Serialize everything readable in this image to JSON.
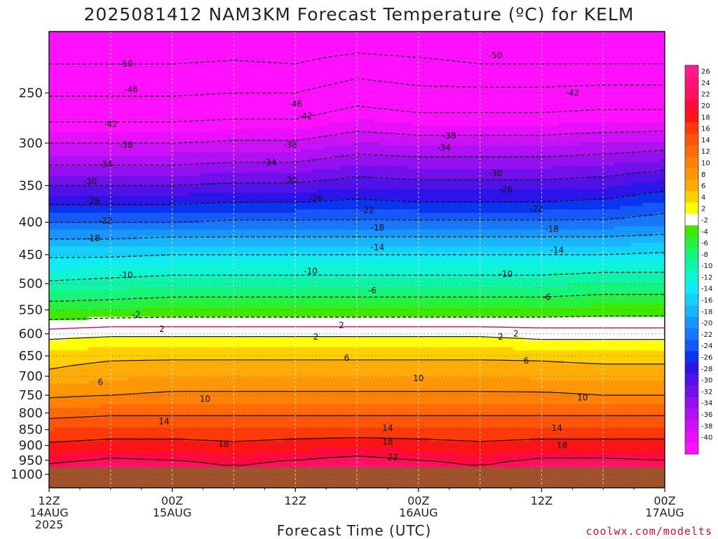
{
  "chart_data": {
    "type": "heatmap",
    "title": "2025081412 NAM3KM Forecast Temperature (ºC) for KELM",
    "xlabel": "Forecast Time (UTC)",
    "ylabel": "",
    "credit": "coolwx.com/modelts",
    "x_hours_from_start": [
      0,
      6,
      12,
      18,
      24,
      30,
      36,
      42,
      48,
      54,
      60
    ],
    "x_ticks": [
      {
        "hour": 0,
        "line1": "12Z",
        "line2": "14AUG",
        "line3": "2025"
      },
      {
        "hour": 12,
        "line1": "00Z",
        "line2": "15AUG",
        "line3": ""
      },
      {
        "hour": 24,
        "line1": "12Z",
        "line2": "",
        "line3": ""
      },
      {
        "hour": 36,
        "line1": "00Z",
        "line2": "16AUG",
        "line3": ""
      },
      {
        "hour": 48,
        "line1": "12Z",
        "line2": "",
        "line3": ""
      },
      {
        "hour": 60,
        "line1": "00Z",
        "line2": "17AUG",
        "line3": ""
      }
    ],
    "y_ticks_hPa": [
      250,
      300,
      350,
      400,
      450,
      500,
      550,
      600,
      650,
      700,
      750,
      800,
      850,
      900,
      950,
      1000
    ],
    "ylim_hPa": [
      200,
      1050
    ],
    "surface_pressure_hPa": 975,
    "contour_interval": 4,
    "temperature_levels": [
      {
        "p": 200,
        "t": [
          -54,
          -54,
          -54,
          -54,
          -54,
          -54,
          -54,
          -54,
          -54,
          -54,
          -54
        ]
      },
      {
        "p": 225,
        "t": [
          -50,
          -50,
          -50,
          -49.5,
          -50,
          -48,
          -49,
          -50,
          -50,
          -50,
          -50
        ]
      },
      {
        "p": 250,
        "t": [
          -46.5,
          -46.5,
          -46.5,
          -46,
          -46,
          -44,
          -45,
          -45,
          -45,
          -44.5,
          -44.5
        ]
      },
      {
        "p": 275,
        "t": [
          -42.5,
          -42.5,
          -42.5,
          -42,
          -42,
          -40,
          -41,
          -41,
          -41,
          -40.5,
          -40.5
        ]
      },
      {
        "p": 300,
        "t": [
          -38,
          -38,
          -38,
          -37.5,
          -37.5,
          -36,
          -36.5,
          -36.5,
          -36.5,
          -36,
          -35.5
        ]
      },
      {
        "p": 325,
        "t": [
          -34,
          -34,
          -34,
          -33.5,
          -33.5,
          -32,
          -32.5,
          -32.5,
          -32.5,
          -32,
          -31
        ]
      },
      {
        "p": 350,
        "t": [
          -30,
          -30,
          -30,
          -29.5,
          -29.5,
          -28.5,
          -29,
          -29,
          -29,
          -28.5,
          -27
        ]
      },
      {
        "p": 375,
        "t": [
          -26,
          -26,
          -26,
          -25.5,
          -25.5,
          -25,
          -25.5,
          -25.5,
          -25.5,
          -25,
          -23.5
        ]
      },
      {
        "p": 400,
        "t": [
          -22,
          -22,
          -22,
          -21.5,
          -21.5,
          -21.5,
          -21.5,
          -21.5,
          -21.5,
          -21.5,
          -20.5
        ]
      },
      {
        "p": 425,
        "t": [
          -18,
          -18,
          -17.5,
          -17.5,
          -17.5,
          -17.5,
          -17.5,
          -17.5,
          -17.5,
          -17.5,
          -17
        ]
      },
      {
        "p": 450,
        "t": [
          -14.5,
          -14.5,
          -14,
          -14,
          -14,
          -14,
          -14,
          -14,
          -14,
          -14,
          -13.5
        ]
      },
      {
        "p": 475,
        "t": [
          -12,
          -11.5,
          -11,
          -11,
          -11,
          -11,
          -11,
          -11,
          -11,
          -10.5,
          -10.5
        ]
      },
      {
        "p": 500,
        "t": [
          -9.5,
          -9,
          -8.5,
          -8.5,
          -8.5,
          -8.5,
          -8.5,
          -8.5,
          -8.5,
          -8,
          -8
        ]
      },
      {
        "p": 525,
        "t": [
          -7,
          -6.5,
          -6,
          -6,
          -6,
          -6,
          -6,
          -6,
          -6,
          -5.5,
          -5.5
        ]
      },
      {
        "p": 550,
        "t": [
          -4,
          -4,
          -3.5,
          -3.5,
          -3.5,
          -3.5,
          -3.5,
          -3.5,
          -3.5,
          -3,
          -3
        ]
      },
      {
        "p": 575,
        "t": [
          -1.5,
          -1,
          -1,
          -1,
          -1,
          -1,
          -1,
          -1,
          -1,
          -1,
          -1
        ]
      },
      {
        "p": 600,
        "t": [
          1,
          1.5,
          1.5,
          1.5,
          1.5,
          1.5,
          1.5,
          1.5,
          1,
          1,
          1
        ]
      },
      {
        "p": 625,
        "t": [
          3,
          3.5,
          3.5,
          3.5,
          3.5,
          3.5,
          3.5,
          3.5,
          3,
          3,
          3
        ]
      },
      {
        "p": 650,
        "t": [
          5,
          5.5,
          5.5,
          5.5,
          5.5,
          5.5,
          5.5,
          5.5,
          5.5,
          5,
          5
        ]
      },
      {
        "p": 700,
        "t": [
          6.5,
          7.5,
          8,
          8,
          8,
          8,
          8,
          8,
          7.5,
          7.5,
          7.5
        ]
      },
      {
        "p": 750,
        "t": [
          9.5,
          10,
          10.5,
          10.5,
          10.5,
          10.5,
          10.5,
          10.5,
          10.5,
          10,
          10
        ]
      },
      {
        "p": 800,
        "t": [
          13,
          13.5,
          13.5,
          13.5,
          13.5,
          13.5,
          13.5,
          13.5,
          13.5,
          13.5,
          13.5
        ]
      },
      {
        "p": 850,
        "t": [
          16,
          16.5,
          16.5,
          16.5,
          16.5,
          16.5,
          16.5,
          16.5,
          16.5,
          16.5,
          16.5
        ]
      },
      {
        "p": 900,
        "t": [
          18.5,
          19,
          19,
          18.5,
          19,
          19.5,
          19,
          18.5,
          19,
          19,
          19
        ]
      },
      {
        "p": 950,
        "t": [
          21,
          22.5,
          22,
          21,
          22,
          23,
          22,
          21,
          22.5,
          22.5,
          22
        ]
      },
      {
        "p": 975,
        "t": [
          23,
          25,
          24,
          22,
          24,
          26,
          24,
          22,
          25,
          25,
          24
        ]
      }
    ],
    "contour_labels": [
      {
        "value": "-50",
        "positions": [
          [
            7.5,
            225
          ],
          [
            43.5,
            218
          ]
        ]
      },
      {
        "value": "-46",
        "positions": [
          [
            8,
            247
          ],
          [
            24,
            260
          ]
        ]
      },
      {
        "value": "-42",
        "positions": [
          [
            6,
            280
          ],
          [
            25,
            272
          ],
          [
            51,
            250
          ]
        ]
      },
      {
        "value": "-38",
        "positions": [
          [
            7.5,
            302
          ],
          [
            23.5,
            302
          ],
          [
            39,
            292
          ]
        ]
      },
      {
        "value": "-34",
        "positions": [
          [
            5.5,
            324
          ],
          [
            21.5,
            322
          ],
          [
            38.5,
            305
          ]
        ]
      },
      {
        "value": "-30",
        "positions": [
          [
            4,
            345
          ],
          [
            23.5,
            343
          ],
          [
            43.5,
            335
          ]
        ]
      },
      {
        "value": "-26",
        "positions": [
          [
            4.3,
            370
          ],
          [
            26,
            367
          ],
          [
            44.5,
            355
          ]
        ]
      },
      {
        "value": "-22",
        "positions": [
          [
            5.5,
            398
          ],
          [
            31,
            383
          ],
          [
            47.5,
            381
          ]
        ]
      },
      {
        "value": "-18",
        "positions": [
          [
            4.3,
            424
          ],
          [
            32,
            408
          ],
          [
            49,
            410
          ]
        ]
      },
      {
        "value": "-14",
        "positions": [
          [
            32,
            438
          ],
          [
            49.5,
            443
          ]
        ]
      },
      {
        "value": "-10",
        "positions": [
          [
            7.5,
            485
          ],
          [
            25.5,
            478
          ],
          [
            44.5,
            483
          ]
        ]
      },
      {
        "value": "-6",
        "positions": [
          [
            31.5,
            513
          ],
          [
            48.5,
            525
          ]
        ]
      },
      {
        "value": "-2",
        "positions": [
          [
            8.5,
            560
          ]
        ]
      },
      {
        "value": "2",
        "positions": [
          [
            11,
            590
          ],
          [
            28.5,
            582
          ],
          [
            45.5,
            600
          ],
          [
            26,
            607
          ],
          [
            44,
            607
          ]
        ]
      },
      {
        "value": "6",
        "positions": [
          [
            5,
            715
          ],
          [
            29,
            655
          ],
          [
            46.5,
            662
          ]
        ]
      },
      {
        "value": "10",
        "positions": [
          [
            15.2,
            760
          ],
          [
            36,
            705
          ],
          [
            52,
            757
          ]
        ]
      },
      {
        "value": "14",
        "positions": [
          [
            11.2,
            825
          ],
          [
            33,
            845
          ],
          [
            49.5,
            845
          ]
        ]
      },
      {
        "value": "18",
        "positions": [
          [
            17,
            895
          ],
          [
            33,
            888
          ],
          [
            50,
            900
          ]
        ]
      },
      {
        "value": "22",
        "positions": [
          [
            33.5,
            940
          ]
        ]
      }
    ],
    "colorbar": {
      "labels": [
        "26",
        "24",
        "22",
        "20",
        "18",
        "16",
        "14",
        "12",
        "10",
        "8",
        "6",
        "4",
        "2",
        "-2",
        "-4",
        "-6",
        "-8",
        "-10",
        "-12",
        "-14",
        "-16",
        "-18",
        "-20",
        "-22",
        "-24",
        "-26",
        "-28",
        "-30",
        "-32",
        "-34",
        "-36",
        "-38",
        "-40"
      ],
      "bands": [
        {
          "min": 26,
          "max": 28,
          "color": "#ff1a90"
        },
        {
          "min": 24,
          "max": 26,
          "color": "#ff1478"
        },
        {
          "min": 22,
          "max": 24,
          "color": "#ff105e"
        },
        {
          "min": 20,
          "max": 22,
          "color": "#ff0a3c"
        },
        {
          "min": 18,
          "max": 20,
          "color": "#ff1414"
        },
        {
          "min": 16,
          "max": 18,
          "color": "#ff3a0a"
        },
        {
          "min": 14,
          "max": 16,
          "color": "#ff5508"
        },
        {
          "min": 12,
          "max": 14,
          "color": "#ff6a08"
        },
        {
          "min": 10,
          "max": 12,
          "color": "#ff8206"
        },
        {
          "min": 8,
          "max": 10,
          "color": "#ff9606"
        },
        {
          "min": 6,
          "max": 8,
          "color": "#ffac08"
        },
        {
          "min": 4,
          "max": 6,
          "color": "#ffd000"
        },
        {
          "min": 2,
          "max": 4,
          "color": "#ffff00"
        },
        {
          "min": -2,
          "max": 2,
          "color": "#ffffff"
        },
        {
          "min": -4,
          "max": -2,
          "color": "#40e800"
        },
        {
          "min": -6,
          "max": -4,
          "color": "#26f040"
        },
        {
          "min": -8,
          "max": -6,
          "color": "#16f47c"
        },
        {
          "min": -10,
          "max": -8,
          "color": "#10f4aa"
        },
        {
          "min": -12,
          "max": -10,
          "color": "#10f4d4"
        },
        {
          "min": -14,
          "max": -12,
          "color": "#10ecf4"
        },
        {
          "min": -16,
          "max": -14,
          "color": "#14d0fa"
        },
        {
          "min": -18,
          "max": -16,
          "color": "#18b4fc"
        },
        {
          "min": -20,
          "max": -18,
          "color": "#1896fc"
        },
        {
          "min": -22,
          "max": -20,
          "color": "#1878fc"
        },
        {
          "min": -24,
          "max": -22,
          "color": "#1458f8"
        },
        {
          "min": -26,
          "max": -24,
          "color": "#0a34f0"
        },
        {
          "min": -28,
          "max": -26,
          "color": "#2c14e8"
        },
        {
          "min": -30,
          "max": -28,
          "color": "#5010e8"
        },
        {
          "min": -32,
          "max": -30,
          "color": "#7210ec"
        },
        {
          "min": -34,
          "max": -32,
          "color": "#9410f0"
        },
        {
          "min": -36,
          "max": -34,
          "color": "#b010f4"
        },
        {
          "min": -38,
          "max": -36,
          "color": "#cc10f8"
        },
        {
          "min": -40,
          "max": -38,
          "color": "#e810fa"
        },
        {
          "min": -100,
          "max": -40,
          "color": "#ff10ff"
        }
      ]
    },
    "colors": {
      "ground": "#a0522d",
      "freezing_line": "#e0107a",
      "contour_line": "#111111",
      "grid": "#444444"
    },
    "grid": true
  }
}
